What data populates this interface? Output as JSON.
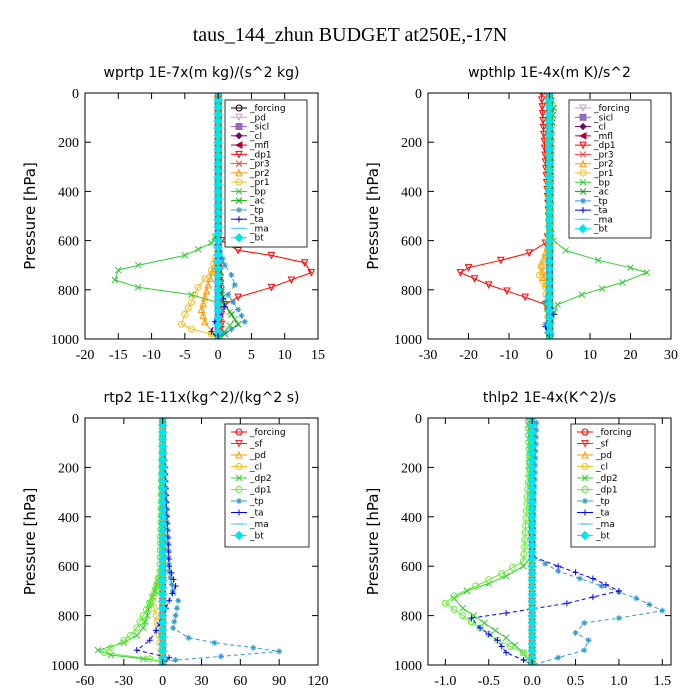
{
  "title": "taus_144_zhun  BUDGET at250E,-17N",
  "chart_data": [
    {
      "type": "line",
      "title": "wprtp  1E-7x(m kg)/(s^2 kg)",
      "ylabel": "Pressure [hPa]",
      "xlim": [
        -20,
        15
      ],
      "ylim": [
        1000,
        0
      ],
      "xticks": [
        -20,
        -15,
        -10,
        -5,
        0,
        5,
        10,
        15
      ],
      "xtick_labels": [
        "-20",
        "-15",
        "-10",
        "-5",
        "0",
        "5",
        "10",
        "15"
      ],
      "yticks": [
        0,
        200,
        400,
        600,
        800,
        1000
      ],
      "legend_position": "top-right",
      "series": [
        {
          "name": "_forcing",
          "color": "#000000",
          "marker": "o",
          "x": [
            0,
            0
          ],
          "y": [
            0,
            1000
          ]
        },
        {
          "name": "_pd",
          "color": "#c8a2c8",
          "marker": "v",
          "x": [
            0,
            0
          ],
          "y": [
            0,
            1000
          ]
        },
        {
          "name": "_sicl",
          "color": "#9467bd",
          "marker": "s",
          "x": [
            0,
            0
          ],
          "y": [
            0,
            1000
          ]
        },
        {
          "name": "_cl",
          "color": "#6a0d6a",
          "marker": "d",
          "x": [
            0,
            0
          ],
          "y": [
            0,
            1000
          ]
        },
        {
          "name": "_mfl",
          "color": "#b00040",
          "marker": "<",
          "x": [
            0,
            0
          ],
          "y": [
            0,
            1000
          ]
        },
        {
          "name": "_dp1",
          "color": "#ff0000",
          "marker": "v",
          "x": [
            0,
            0,
            0.5,
            3,
            8,
            13,
            14,
            8,
            3,
            1,
            0.5,
            0.3,
            0.5,
            0.3,
            0.2,
            0
          ],
          "y": [
            0,
            560,
            600,
            640,
            660,
            690,
            730,
            790,
            830,
            860,
            900,
            920,
            940,
            960,
            980,
            1000
          ]
        },
        {
          "name": "_pr3",
          "color": "#ff4040",
          "marker": "x",
          "x": [
            0,
            0,
            0.3,
            0.5,
            0.3,
            0.5,
            0
          ],
          "y": [
            0,
            600,
            700,
            800,
            900,
            960,
            1000
          ]
        },
        {
          "name": "_pr2",
          "color": "#ff9900",
          "marker": "^",
          "x": [
            0,
            0,
            -0.5,
            -1.5,
            -2,
            -2.5,
            -2,
            -1,
            0
          ],
          "y": [
            0,
            620,
            700,
            780,
            830,
            880,
            930,
            970,
            1000
          ]
        },
        {
          "name": "_pr1",
          "color": "#f0c020",
          "marker": "o",
          "x": [
            0,
            0,
            -1,
            -3,
            -4,
            -5,
            -5.5,
            -4,
            -1,
            0
          ],
          "y": [
            0,
            640,
            720,
            790,
            850,
            900,
            940,
            960,
            980,
            1000
          ]
        },
        {
          "name": "_bp",
          "color": "#33cc33",
          "marker": "x",
          "x": [
            0,
            0,
            -1,
            -5,
            -12,
            -15,
            -15.5,
            -12,
            -4,
            1,
            2.5,
            1,
            0
          ],
          "y": [
            0,
            560,
            610,
            660,
            700,
            720,
            760,
            790,
            820,
            860,
            920,
            970,
            1000
          ]
        },
        {
          "name": "_ac",
          "color": "#00aa00",
          "marker": "x",
          "x": [
            0,
            0,
            0.5,
            1,
            2,
            3,
            1,
            0
          ],
          "y": [
            0,
            700,
            800,
            860,
            900,
            940,
            980,
            1000
          ]
        },
        {
          "name": "_tp",
          "color": "#3399cc",
          "marker": "*",
          "x": [
            0,
            0,
            1,
            2,
            2.5,
            1.5,
            3,
            4,
            2,
            0.5,
            0
          ],
          "y": [
            0,
            620,
            700,
            740,
            780,
            820,
            880,
            930,
            960,
            980,
            1000
          ]
        },
        {
          "name": "_ta",
          "color": "#0000ff",
          "marker": "+",
          "x": [
            0,
            0,
            0.5,
            1,
            -0.5,
            -1,
            0
          ],
          "y": [
            0,
            700,
            800,
            870,
            930,
            970,
            1000
          ]
        },
        {
          "name": "_ma",
          "color": "#66ccff",
          "marker": "-",
          "x": [
            0,
            0
          ],
          "y": [
            0,
            1000
          ]
        },
        {
          "name": "_bt",
          "color": "#00e5ee",
          "marker": "D",
          "x": [
            0,
            0
          ],
          "y": [
            0,
            1000
          ]
        }
      ]
    },
    {
      "type": "line",
      "title": "wpthlp  1E-4x(m K)/s^2",
      "ylabel": "Pressure [hPa]",
      "xlim": [
        -30,
        30
      ],
      "ylim": [
        1000,
        0
      ],
      "xticks": [
        -30,
        -20,
        -10,
        0,
        10,
        20,
        30
      ],
      "xtick_labels": [
        "-30",
        "-20",
        "-10",
        "0",
        "10",
        "20",
        "30"
      ],
      "yticks": [
        0,
        200,
        400,
        600,
        800,
        1000
      ],
      "legend_position": "top-right",
      "series": [
        {
          "name": "_forcing",
          "color": "#c8a2c8",
          "marker": "v",
          "x": [
            0,
            0
          ],
          "y": [
            0,
            1000
          ]
        },
        {
          "name": "_sicl",
          "color": "#9467bd",
          "marker": "s",
          "x": [
            0,
            0
          ],
          "y": [
            0,
            1000
          ]
        },
        {
          "name": "_cl",
          "color": "#6a0d6a",
          "marker": "d",
          "x": [
            0,
            0
          ],
          "y": [
            0,
            1000
          ]
        },
        {
          "name": "_mfl",
          "color": "#b00040",
          "marker": "<",
          "x": [
            0,
            0
          ],
          "y": [
            0,
            1000
          ]
        },
        {
          "name": "_dp1",
          "color": "#ff0000",
          "marker": "v",
          "x": [
            -2,
            0,
            -1,
            -5,
            -12,
            -20,
            -22,
            -15,
            -6,
            -1,
            0,
            0
          ],
          "y": [
            0,
            560,
            610,
            650,
            680,
            710,
            730,
            780,
            830,
            860,
            920,
            1000
          ]
        },
        {
          "name": "_pr3",
          "color": "#ff4040",
          "marker": "x",
          "x": [
            -1,
            0,
            0
          ],
          "y": [
            0,
            60,
            1000
          ]
        },
        {
          "name": "_pr2",
          "color": "#ff9900",
          "marker": "^",
          "x": [
            0,
            0,
            -1,
            -2,
            -1.5,
            0,
            0
          ],
          "y": [
            0,
            600,
            650,
            700,
            750,
            800,
            1000
          ]
        },
        {
          "name": "_pr1",
          "color": "#f0c020",
          "marker": "o",
          "x": [
            0,
            0,
            -1,
            -2,
            -2.5,
            -1,
            0
          ],
          "y": [
            0,
            620,
            660,
            700,
            740,
            790,
            1000
          ]
        },
        {
          "name": "_bp",
          "color": "#33cc33",
          "marker": "x",
          "x": [
            0,
            0,
            1,
            4,
            12,
            20,
            24,
            18,
            8,
            2,
            0.5,
            0
          ],
          "y": [
            0,
            540,
            600,
            640,
            680,
            710,
            730,
            770,
            820,
            860,
            920,
            1000
          ]
        },
        {
          "name": "_ac",
          "color": "#00aa00",
          "marker": "x",
          "x": [
            0,
            1,
            0.5,
            0
          ],
          "y": [
            0,
            60,
            150,
            1000
          ]
        },
        {
          "name": "_tp",
          "color": "#3399cc",
          "marker": "*",
          "x": [
            0,
            0,
            -1,
            0,
            -1,
            0.5,
            0
          ],
          "y": [
            0,
            800,
            850,
            900,
            940,
            980,
            1000
          ]
        },
        {
          "name": "_ta",
          "color": "#0000ff",
          "marker": "+",
          "x": [
            0,
            0,
            1,
            -1,
            0
          ],
          "y": [
            0,
            850,
            900,
            950,
            1000
          ]
        },
        {
          "name": "_ma",
          "color": "#66ccff",
          "marker": "-",
          "x": [
            0,
            0
          ],
          "y": [
            0,
            1000
          ]
        },
        {
          "name": "_bt",
          "color": "#00e5ee",
          "marker": "D",
          "x": [
            0,
            0
          ],
          "y": [
            0,
            1000
          ]
        }
      ]
    },
    {
      "type": "line",
      "title": "rtp2  1E-11x(kg^2)/(kg^2 s)",
      "ylabel": "Pressure [hPa]",
      "xlim": [
        -60,
        120
      ],
      "ylim": [
        1000,
        0
      ],
      "xticks": [
        -60,
        -30,
        0,
        30,
        60,
        90,
        120
      ],
      "xtick_labels": [
        "-60",
        "-30",
        "0",
        "30",
        "60",
        "90",
        "120"
      ],
      "yticks": [
        0,
        200,
        400,
        600,
        800,
        1000
      ],
      "legend_position": "top-right",
      "series": [
        {
          "name": "_forcing",
          "color": "#ff0000",
          "marker": "o",
          "x": [
            0,
            0
          ],
          "y": [
            0,
            1000
          ]
        },
        {
          "name": "_sf",
          "color": "#ff2020",
          "marker": "v",
          "x": [
            0,
            0
          ],
          "y": [
            0,
            1000
          ]
        },
        {
          "name": "_pd",
          "color": "#ff9900",
          "marker": "^",
          "x": [
            0,
            0
          ],
          "y": [
            0,
            1000
          ]
        },
        {
          "name": "_cl",
          "color": "#f0c020",
          "marker": "o",
          "x": [
            0,
            -2,
            -5,
            -8,
            -5,
            -3,
            0
          ],
          "y": [
            0,
            620,
            680,
            740,
            800,
            880,
            1000
          ]
        },
        {
          "name": "_dp2",
          "color": "#33cc33",
          "marker": "x",
          "x": [
            0,
            0,
            -3,
            -6,
            -10,
            -12,
            -15,
            -20,
            -30,
            -50,
            -40,
            -15,
            0
          ],
          "y": [
            0,
            600,
            650,
            700,
            750,
            800,
            850,
            880,
            910,
            940,
            960,
            975,
            985
          ]
        },
        {
          "name": "_dp1",
          "color": "#66ee33",
          "marker": "o",
          "x": [
            0,
            -2,
            -5,
            -10,
            -15,
            -20,
            -25,
            -30,
            -40,
            -45,
            -10,
            0
          ],
          "y": [
            0,
            620,
            700,
            750,
            800,
            850,
            880,
            900,
            930,
            950,
            975,
            990
          ]
        },
        {
          "name": "_tp",
          "color": "#3399cc",
          "marker": "*",
          "x": [
            0,
            5,
            8,
            12,
            10,
            8,
            20,
            40,
            70,
            90,
            45,
            10,
            0
          ],
          "y": [
            0,
            620,
            700,
            740,
            800,
            850,
            890,
            910,
            930,
            945,
            965,
            980,
            990
          ]
        },
        {
          "name": "_ta",
          "color": "#0000ff",
          "marker": "+",
          "x": [
            0,
            5,
            10,
            5,
            0,
            -5,
            -10,
            -20,
            5,
            0
          ],
          "y": [
            0,
            600,
            680,
            740,
            800,
            860,
            900,
            940,
            970,
            1000
          ]
        },
        {
          "name": "_ma",
          "color": "#66ccff",
          "marker": "-",
          "x": [
            0,
            0
          ],
          "y": [
            0,
            1000
          ]
        },
        {
          "name": "_bt",
          "color": "#00e5ee",
          "marker": "D",
          "x": [
            0,
            0
          ],
          "y": [
            0,
            1000
          ]
        }
      ]
    },
    {
      "type": "line",
      "title": "thlp2  1E-4x(K^2)/s",
      "ylabel": "Pressure [hPa]",
      "xlim": [
        -1.2,
        1.6
      ],
      "ylim": [
        1000,
        0
      ],
      "xticks": [
        -1.0,
        -0.5,
        0.0,
        0.5,
        1.0,
        1.5
      ],
      "xtick_labels": [
        "-1.0",
        "-0.5",
        "0.0",
        "0.5",
        "1.0",
        "1.5"
      ],
      "yticks": [
        0,
        200,
        400,
        600,
        800,
        1000
      ],
      "legend_position": "top-right",
      "series": [
        {
          "name": "_forcing",
          "color": "#ff0000",
          "marker": "o",
          "x": [
            0,
            0
          ],
          "y": [
            0,
            1000
          ]
        },
        {
          "name": "_sf",
          "color": "#ff2020",
          "marker": "v",
          "x": [
            0,
            0
          ],
          "y": [
            0,
            1000
          ]
        },
        {
          "name": "_pd",
          "color": "#ff9900",
          "marker": "^",
          "x": [
            0,
            0
          ],
          "y": [
            0,
            1000
          ]
        },
        {
          "name": "_cl",
          "color": "#f0c020",
          "marker": "o",
          "x": [
            0,
            0
          ],
          "y": [
            0,
            1000
          ]
        },
        {
          "name": "_dp2",
          "color": "#33cc33",
          "marker": "x",
          "x": [
            -0.05,
            0,
            -0.1,
            -0.3,
            -0.5,
            -0.75,
            -0.9,
            -0.8,
            -0.55,
            -0.3,
            -0.1,
            0
          ],
          "y": [
            0,
            560,
            600,
            640,
            670,
            700,
            730,
            770,
            830,
            890,
            950,
            1000
          ]
        },
        {
          "name": "_dp1",
          "color": "#66ee33",
          "marker": "o",
          "x": [
            0,
            -0.1,
            -0.35,
            -0.65,
            -0.9,
            -1.0,
            -0.8,
            -0.6,
            -0.4,
            -0.1,
            0
          ],
          "y": [
            0,
            580,
            630,
            680,
            720,
            750,
            800,
            850,
            900,
            950,
            1000
          ]
        },
        {
          "name": "_tp",
          "color": "#3399cc",
          "marker": "*",
          "x": [
            0,
            0.05,
            0,
            0.3,
            0.8,
            1.2,
            1.5,
            1.0,
            0.6,
            0.5,
            0.65,
            0.6,
            0.3,
            0
          ],
          "y": [
            0,
            20,
            560,
            620,
            680,
            730,
            780,
            810,
            830,
            870,
            900,
            940,
            970,
            1000
          ]
        },
        {
          "name": "_ta",
          "color": "#0000ff",
          "marker": "+",
          "x": [
            0,
            0,
            0.3,
            0.7,
            1.0,
            0.4,
            -0.3,
            -0.7,
            -0.6,
            -0.4,
            -0.3,
            -0.1,
            0
          ],
          "y": [
            0,
            560,
            600,
            650,
            700,
            750,
            790,
            810,
            850,
            900,
            950,
            980,
            1000
          ]
        },
        {
          "name": "_ma",
          "color": "#66ccff",
          "marker": "-",
          "x": [
            0,
            0
          ],
          "y": [
            0,
            1000
          ]
        },
        {
          "name": "_bt",
          "color": "#00e5ee",
          "marker": "D",
          "x": [
            0,
            0
          ],
          "y": [
            0,
            1000
          ]
        }
      ]
    }
  ]
}
